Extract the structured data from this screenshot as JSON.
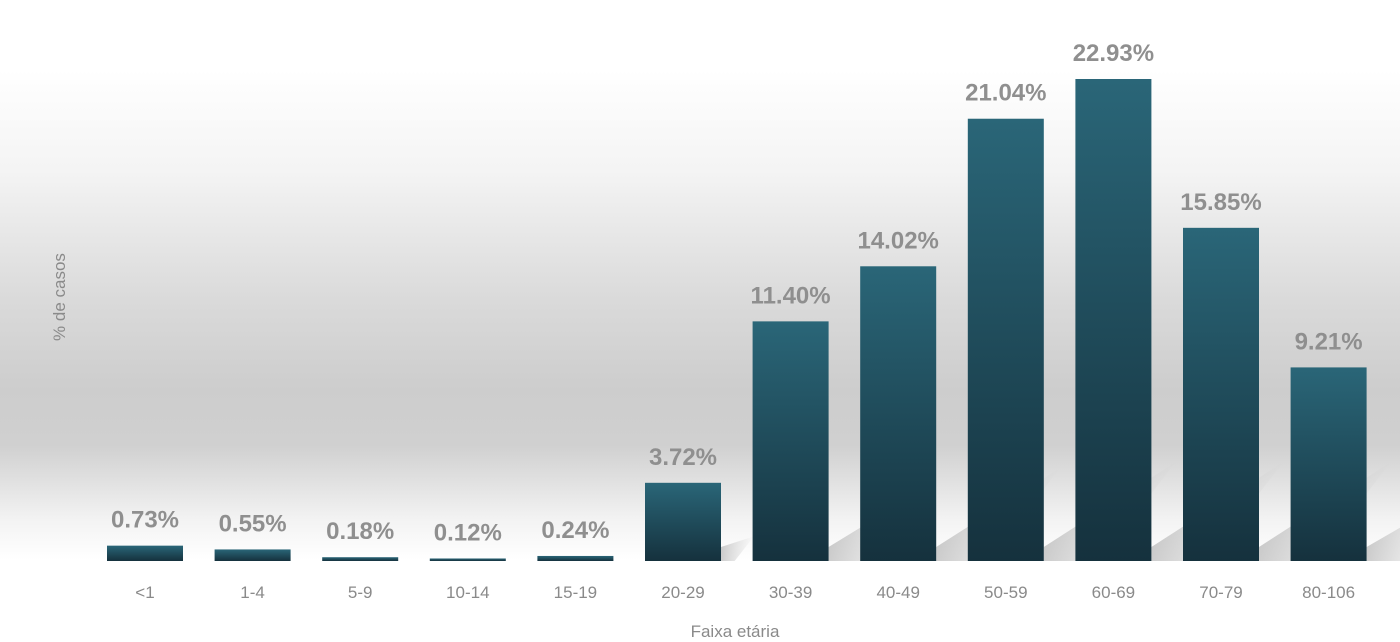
{
  "chart_data": {
    "type": "bar",
    "title": "",
    "xlabel": "Faixa etária",
    "ylabel": "% de casos",
    "categories": [
      "<1",
      "1-4",
      "5-9",
      "10-14",
      "15-19",
      "20-29",
      "30-39",
      "40-49",
      "50-59",
      "60-69",
      "70-79",
      "80-106"
    ],
    "values": [
      0.73,
      0.55,
      0.18,
      0.12,
      0.24,
      3.72,
      11.4,
      14.02,
      21.04,
      22.93,
      15.85,
      9.21
    ],
    "data_labels": [
      "0.73%",
      "0.55%",
      "0.18%",
      "0.12%",
      "0.24%",
      "3.72%",
      "11.40%",
      "14.02%",
      "21.04%",
      "22.93%",
      "15.85%",
      "9.21%"
    ],
    "ylim": [
      0,
      22.93
    ],
    "grid": false,
    "legend": "none",
    "colors": {
      "bar_top": "#2a6678",
      "bar_bottom": "#15313d",
      "label": "#8f8f8f",
      "axis_text": "#8a8a8a"
    }
  }
}
